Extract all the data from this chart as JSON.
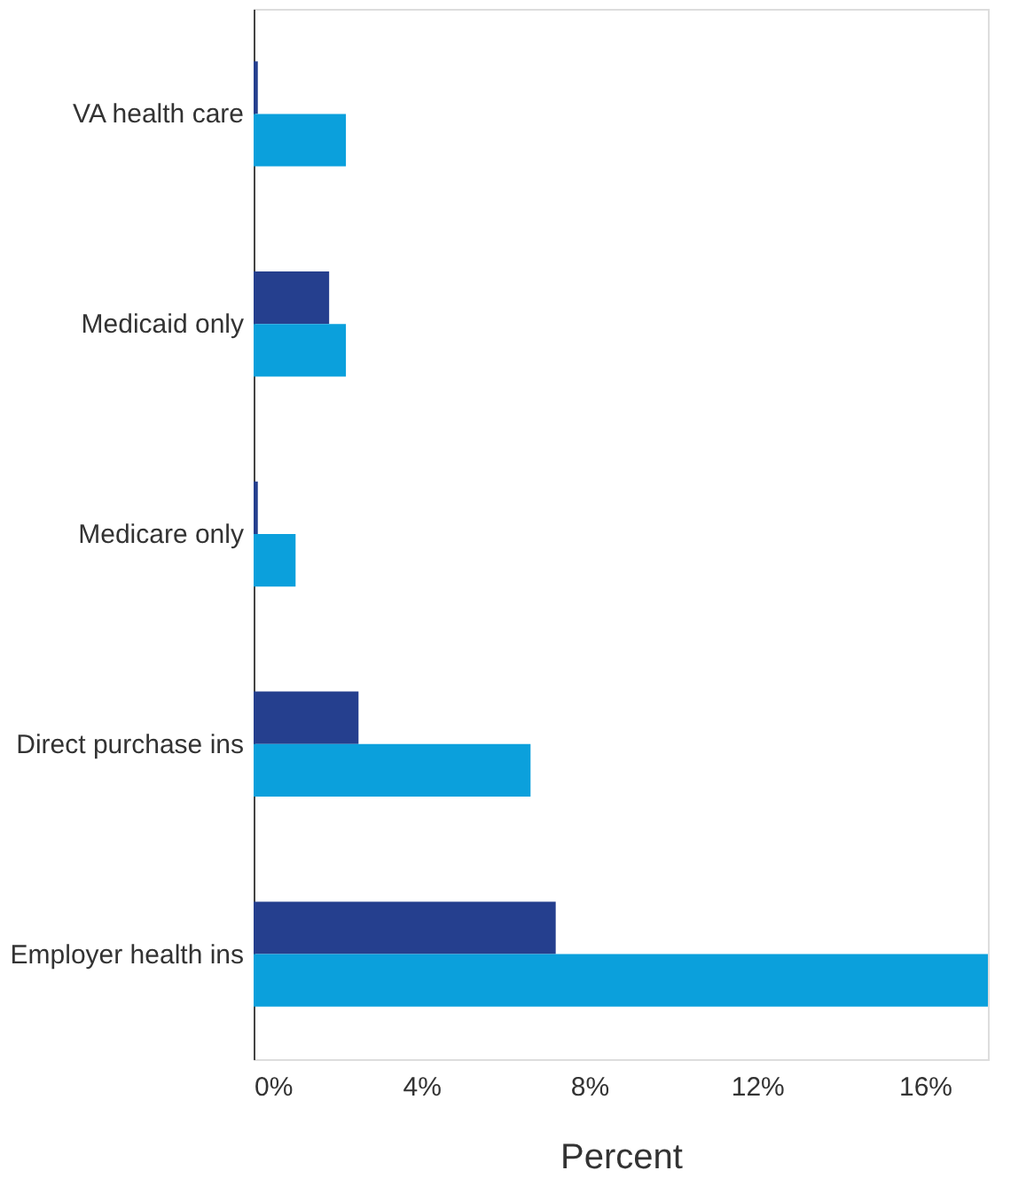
{
  "chart_data": {
    "type": "bar",
    "orientation": "horizontal",
    "xlabel": "Percent",
    "categories": [
      "VA health care",
      "Medicaid only",
      "Medicare only",
      "Direct purchase ins",
      "Employer health ins"
    ],
    "series": [
      {
        "color": "#253f8e",
        "values": [
          0.1,
          1.8,
          0.1,
          2.5,
          7.2
        ]
      },
      {
        "color": "#0ba0dc",
        "values": [
          2.2,
          2.2,
          1.0,
          6.6,
          17.5
        ]
      }
    ],
    "xlim": [
      0,
      17.5
    ],
    "xticks": [
      {
        "value": 0,
        "label": "0%"
      },
      {
        "value": 4,
        "label": "4%"
      },
      {
        "value": 8,
        "label": "8%"
      },
      {
        "value": 12,
        "label": "12%"
      },
      {
        "value": 16,
        "label": "16%"
      }
    ],
    "grid": false,
    "legend": false
  }
}
